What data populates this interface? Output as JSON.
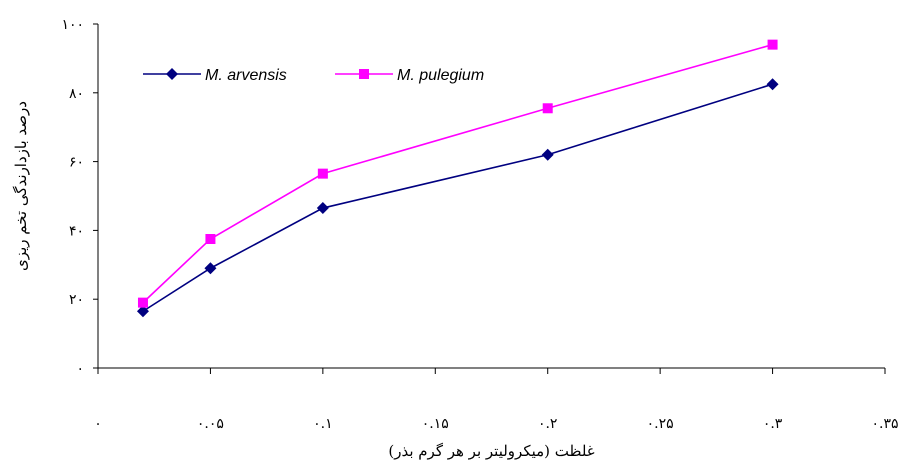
{
  "chart_data": {
    "type": "line",
    "title": "",
    "xlabel": "غلظت (میکرولیتر بر هر گرم بذر)",
    "ylabel": "درصد بازدارندگی تخم ریزی",
    "xlim": [
      0,
      0.35
    ],
    "ylim": [
      0,
      100
    ],
    "x_ticks": [
      0,
      0.05,
      0.1,
      0.15,
      0.2,
      0.25,
      0.3,
      0.35
    ],
    "x_tick_labels": [
      "۰",
      "۰.۰۵",
      "۰.۱",
      "۰.۱۵",
      "۰.۲",
      "۰.۲۵",
      "۰.۳",
      "۰.۳۵"
    ],
    "y_ticks": [
      0,
      20,
      40,
      60,
      80,
      100
    ],
    "y_tick_labels": [
      "۰",
      "۲۰",
      "۴۰",
      "۶۰",
      "۸۰",
      "۱۰۰"
    ],
    "grid": false,
    "legend_position": "top-left",
    "series": [
      {
        "name": "M. arvensis",
        "color": "#000080",
        "marker": "diamond",
        "x": [
          0.02,
          0.05,
          0.1,
          0.2,
          0.3
        ],
        "y": [
          16.5,
          29,
          46.5,
          62,
          82.5
        ]
      },
      {
        "name": "M. pulegium",
        "color": "#FF00FF",
        "marker": "square",
        "x": [
          0.02,
          0.05,
          0.1,
          0.2,
          0.3
        ],
        "y": [
          19,
          37.5,
          56.5,
          75.5,
          94
        ]
      }
    ]
  }
}
